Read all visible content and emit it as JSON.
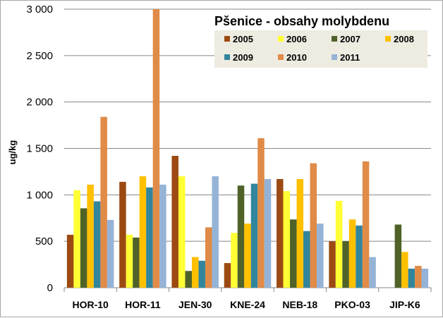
{
  "chart_data": {
    "type": "bar",
    "title": "Pšenice - obsahy molybdenu",
    "xlabel": "",
    "ylabel": "ug/kg",
    "ylim": [
      0,
      3000
    ],
    "yticks": [
      0,
      500,
      1000,
      1500,
      2000,
      2500,
      3000
    ],
    "ytick_labels": [
      "0",
      "500",
      "1 000",
      "1 500",
      "2 000",
      "2 500",
      "3 000"
    ],
    "grid": true,
    "legend_position": "top-right",
    "categories": [
      "HOR-10",
      "HOR-11",
      "JEN-30",
      "KNE-24",
      "NEB-18",
      "PKO-03",
      "JIP-K6"
    ],
    "series": [
      {
        "name": "2005",
        "color": "#9c4a12",
        "values": [
          570,
          1140,
          1420,
          265,
          1170,
          500,
          null
        ]
      },
      {
        "name": "2006",
        "color": "#ffff33",
        "values": [
          1050,
          570,
          1200,
          590,
          1040,
          935,
          null
        ]
      },
      {
        "name": "2007",
        "color": "#4f6228",
        "values": [
          855,
          540,
          180,
          1100,
          735,
          500,
          680
        ]
      },
      {
        "name": "2008",
        "color": "#ffc000",
        "values": [
          1110,
          1200,
          330,
          690,
          1170,
          735,
          385
        ]
      },
      {
        "name": "2009",
        "color": "#31859c",
        "values": [
          930,
          1080,
          290,
          1120,
          610,
          670,
          205
        ]
      },
      {
        "name": "2010",
        "color": "#e08b47",
        "values": [
          1840,
          3000,
          650,
          1610,
          1340,
          1360,
          235
        ]
      },
      {
        "name": "2011",
        "color": "#95b3d7",
        "values": [
          730,
          1110,
          1200,
          1170,
          690,
          330,
          205
        ]
      }
    ]
  }
}
